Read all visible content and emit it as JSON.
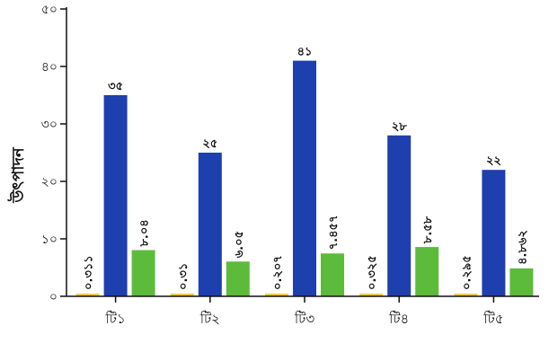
{
  "chart_data": {
    "type": "bar",
    "ylabel": "উৎপাদন",
    "ylim": [
      0,
      50
    ],
    "yticks": [
      "০",
      "১০",
      "২০",
      "৩০",
      "৪০",
      "৫০"
    ],
    "ytick_values": [
      0,
      10,
      20,
      30,
      40,
      50
    ],
    "categories": [
      "টি১",
      "টি২",
      "টি৩",
      "টি৪",
      "টি৫"
    ],
    "grid": false,
    "series": [
      {
        "color": "#f3c64a",
        "values": [
          0.311,
          0.31,
          0.207,
          0.325,
          0.295
        ],
        "labels": [
          "০.৩১১",
          "০.৩১",
          "০.২০৭",
          "০.৩২৫",
          "০.২৯৫"
        ]
      },
      {
        "color": "#1e3fae",
        "values": [
          35,
          25,
          41,
          28,
          22
        ],
        "labels": [
          "৩৫",
          "২৫",
          "৪১",
          "২৮",
          "২২"
        ]
      },
      {
        "color": "#5dbb3b",
        "values": [
          8.04,
          6.05,
          7.457,
          8.58,
          4.862
        ],
        "labels": [
          "৮.০৪",
          "৬.০৫",
          "৭.৪৫৭",
          "৮.৫৮",
          "৪.৮৬২"
        ]
      }
    ]
  }
}
